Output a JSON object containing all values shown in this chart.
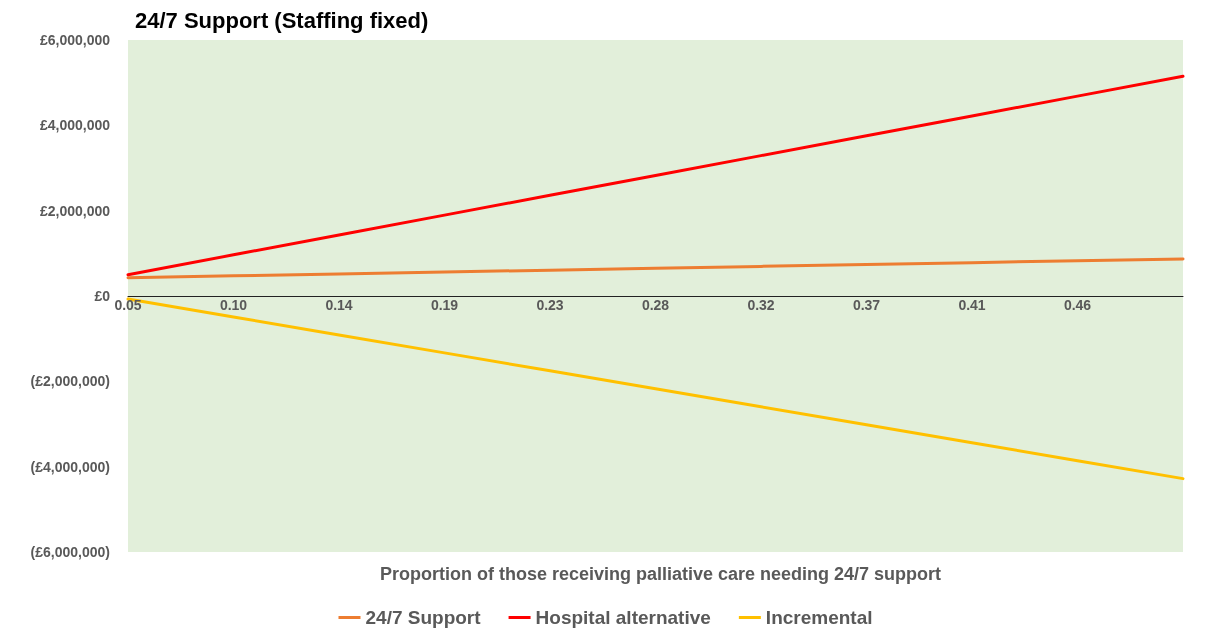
{
  "chart_data": {
    "type": "line",
    "title": "24/7 Support (Staffing fixed)",
    "xlabel": "Proportion of those receiving palliative care needing 24/7 support",
    "categories": [
      "0.05",
      "0.10",
      "0.14",
      "0.19",
      "0.23",
      "0.28",
      "0.32",
      "0.37",
      "0.41",
      "0.46",
      null
    ],
    "series": [
      {
        "name": "24/7 Support",
        "color": "#ed7d31",
        "values": [
          430000,
          474000,
          518000,
          562000,
          606000,
          650000,
          694000,
          738000,
          782000,
          826000,
          870000
        ]
      },
      {
        "name": "Hospital alternative",
        "color": "#ff0000",
        "values": [
          500000,
          965000,
          1430000,
          1895000,
          2360000,
          2825000,
          3290000,
          3755000,
          4220000,
          4685000,
          5150000
        ]
      },
      {
        "name": "Incremental",
        "color": "#ffc000",
        "values": [
          -70000,
          -491000,
          -912000,
          -1333000,
          -1754000,
          -2175000,
          -2596000,
          -3017000,
          -3438000,
          -3859000,
          -4280000
        ]
      }
    ],
    "ylim": [
      -6000000,
      6000000
    ],
    "yticks": [
      {
        "value": -6000000,
        "label": "(£6,000,000)"
      },
      {
        "value": -4000000,
        "label": "(£4,000,000)"
      },
      {
        "value": -2000000,
        "label": "(£2,000,000)"
      },
      {
        "value": 0,
        "label": "£0"
      },
      {
        "value": 2000000,
        "label": "£2,000,000"
      },
      {
        "value": 4000000,
        "label": "£4,000,000"
      },
      {
        "value": 6000000,
        "label": "£6,000,000"
      }
    ],
    "grid": false,
    "legend": "bottom",
    "marker": "none",
    "line_style": "solid"
  }
}
